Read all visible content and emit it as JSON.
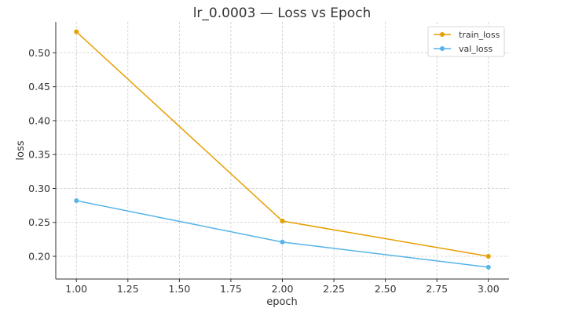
{
  "chart_data": {
    "type": "line",
    "title": "lr_0.0003 — Loss vs Epoch",
    "xlabel": "epoch",
    "ylabel": "loss",
    "x": [
      1.0,
      2.0,
      3.0
    ],
    "xlim": [
      0.9,
      3.1
    ],
    "ylim": [
      0.1665,
      0.5455
    ],
    "xticks": [
      "1.00",
      "1.25",
      "1.50",
      "1.75",
      "2.00",
      "2.25",
      "2.50",
      "2.75",
      "3.00"
    ],
    "yticks": [
      "0.20",
      "0.25",
      "0.30",
      "0.35",
      "0.40",
      "0.45",
      "0.50"
    ],
    "grid": true,
    "legend_position": "top-right",
    "series": [
      {
        "name": "train_loss",
        "color": "#E69F00",
        "values": [
          0.531,
          0.252,
          0.2
        ]
      },
      {
        "name": "val_loss",
        "color": "#56B4E9",
        "values": [
          0.282,
          0.221,
          0.184
        ]
      }
    ]
  }
}
